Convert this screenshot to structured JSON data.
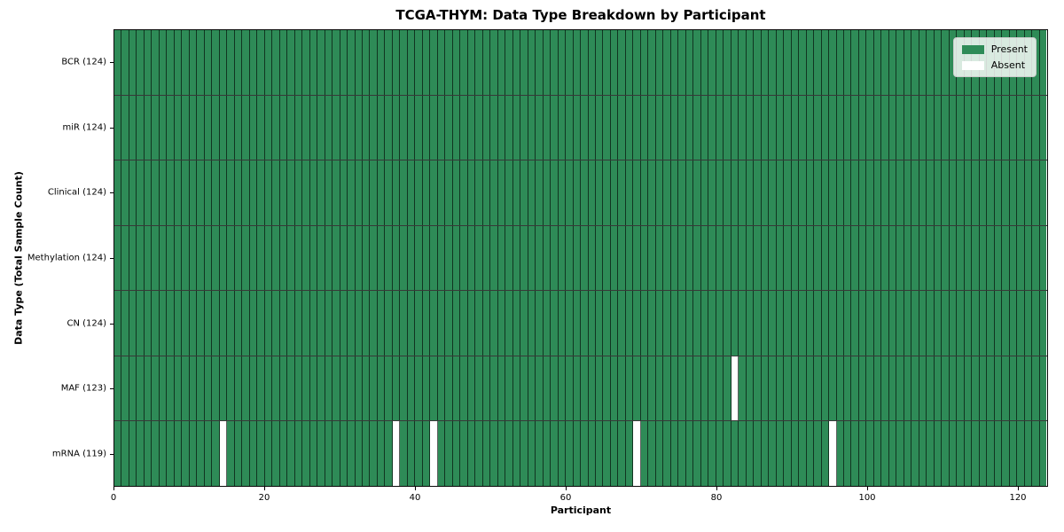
{
  "chart_data": {
    "type": "heatmap",
    "title": "TCGA-THYM: Data Type Breakdown by Participant",
    "xlabel": "Participant",
    "ylabel": "Data Type (Total Sample Count)",
    "n_participants": 124,
    "xlim": [
      0,
      124
    ],
    "x_ticks": [
      0,
      20,
      40,
      60,
      80,
      100,
      120
    ],
    "grid": false,
    "rows": [
      {
        "label": "BCR (124)",
        "total_samples": 124,
        "absent_participants": []
      },
      {
        "label": "miR (124)",
        "total_samples": 124,
        "absent_participants": []
      },
      {
        "label": "Clinical (124)",
        "total_samples": 124,
        "absent_participants": []
      },
      {
        "label": "Methylation (124)",
        "total_samples": 124,
        "absent_participants": []
      },
      {
        "label": "CN (124)",
        "total_samples": 124,
        "absent_participants": []
      },
      {
        "label": "MAF (123)",
        "total_samples": 123,
        "absent_participants": [
          82
        ]
      },
      {
        "label": "mRNA (119)",
        "total_samples": 119,
        "absent_participants": [
          14,
          37,
          42,
          69,
          95
        ]
      }
    ],
    "legend": {
      "position": "upper-right",
      "items": [
        {
          "label": "Present",
          "color": "#2e8b57"
        },
        {
          "label": "Absent",
          "color": "#ffffff"
        }
      ]
    },
    "colors": {
      "present": "#2e8b57",
      "absent": "#ffffff",
      "background": "#ffffff"
    }
  }
}
